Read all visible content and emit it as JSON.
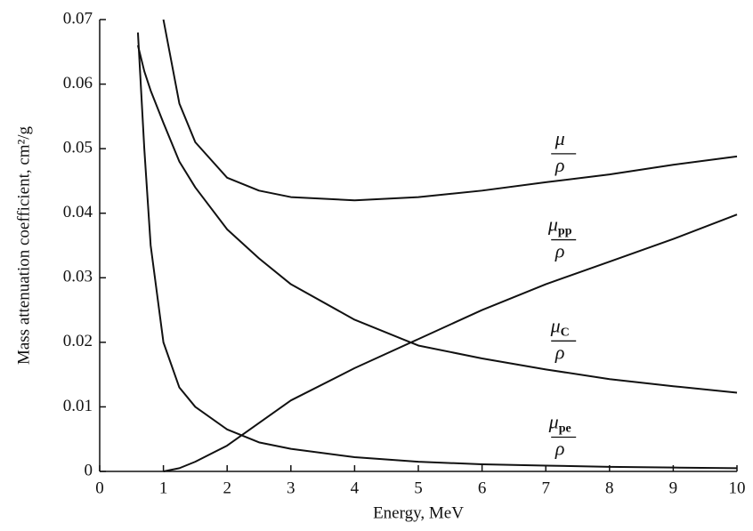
{
  "chart_data": {
    "type": "line",
    "xlabel": "Energy, MeV",
    "ylabel": "Mass attenuation coefficient, cm²/g",
    "x": [
      0.5,
      0.6,
      0.7,
      0.8,
      1,
      1.25,
      1.5,
      2,
      2.5,
      3,
      4,
      5,
      6,
      7,
      8,
      9,
      10
    ],
    "series": [
      {
        "label": {
          "symbol": "μ",
          "denominator": "ρ"
        },
        "color": "#111111",
        "values": [
          null,
          null,
          null,
          null,
          0.07,
          0.057,
          0.051,
          0.0455,
          0.0435,
          0.0425,
          0.042,
          0.0425,
          0.0435,
          0.0448,
          0.046,
          0.0475,
          0.0488
        ]
      },
      {
        "label": {
          "symbol": "μ",
          "sub": "pp",
          "denominator": "ρ"
        },
        "color": "#111111",
        "values": [
          null,
          null,
          null,
          null,
          0,
          0.0005,
          0.0015,
          0.004,
          0.0075,
          0.011,
          0.016,
          0.0205,
          0.025,
          0.029,
          0.0325,
          0.036,
          0.0398
        ]
      },
      {
        "label": {
          "symbol": "μ",
          "sub": "C",
          "denominator": "ρ"
        },
        "color": "#111111",
        "values": [
          null,
          0.066,
          0.062,
          0.059,
          0.054,
          0.048,
          0.044,
          0.0375,
          0.033,
          0.029,
          0.0235,
          0.0195,
          0.0175,
          0.0158,
          0.0143,
          0.0132,
          0.0122
        ]
      },
      {
        "label": {
          "symbol": "μ",
          "sub": "pe",
          "denominator": "ρ"
        },
        "color": "#111111",
        "values": [
          null,
          0.068,
          0.05,
          0.035,
          0.02,
          0.013,
          0.01,
          0.0065,
          0.0045,
          0.0035,
          0.0022,
          0.0015,
          0.0011,
          0.0009,
          0.0007,
          0.0006,
          0.0005
        ]
      }
    ],
    "xlim": [
      0,
      10
    ],
    "xticks": [
      0,
      1,
      2,
      3,
      4,
      5,
      6,
      7,
      8,
      9,
      10
    ],
    "ylim": [
      0,
      0.07
    ],
    "yticks": [
      0,
      0.01,
      0.02,
      0.03,
      0.04,
      0.05,
      0.06,
      0.07
    ]
  }
}
